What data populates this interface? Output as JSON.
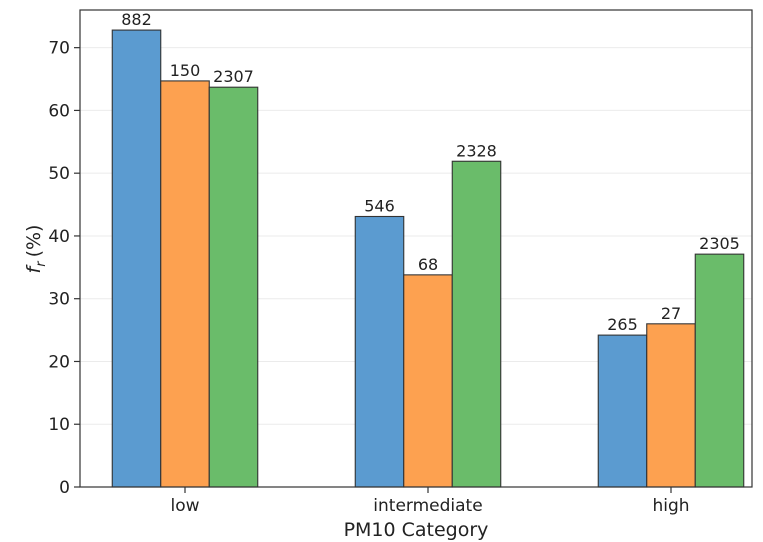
{
  "chart_data": {
    "type": "bar",
    "xlabel": "PM10 Category",
    "ylabel_symbol": "f",
    "ylabel_subscript": "r",
    "ylabel_unit": "(%)",
    "categories": [
      "low",
      "intermediate",
      "high"
    ],
    "ylim": [
      0,
      76
    ],
    "yticks": [
      0,
      10,
      20,
      30,
      40,
      50,
      60,
      70
    ],
    "grid": true,
    "series": [
      {
        "color": "#5b9bd0",
        "values": [
          72.8,
          43.1,
          24.2
        ],
        "bar_labels": [
          "882",
          "546",
          "265"
        ]
      },
      {
        "color": "#fda150",
        "values": [
          64.7,
          33.8,
          26.0
        ],
        "bar_labels": [
          "150",
          "68",
          "27"
        ]
      },
      {
        "color": "#6abc6a",
        "values": [
          63.7,
          51.9,
          37.1
        ],
        "bar_labels": [
          "2307",
          "2328",
          "2305"
        ]
      }
    ]
  }
}
